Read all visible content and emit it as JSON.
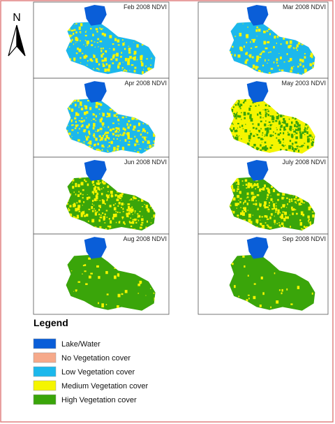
{
  "north": "N",
  "panels": [
    {
      "title": "Feb 2008 NDVI"
    },
    {
      "title": "Mar 2008 NDVI"
    },
    {
      "title": "Apr 2008 NDVI"
    },
    {
      "title": "May 2003 NDVI"
    },
    {
      "title": "Jun 2008 NDVI"
    },
    {
      "title": "July 2008 NDVI"
    },
    {
      "title": "Aug 2008 NDVI"
    },
    {
      "title": "Sep 2008 NDVI"
    }
  ],
  "legend": {
    "title": "Legend",
    "items": [
      {
        "label": "Lake/Water",
        "color": "#0a5ed8"
      },
      {
        "label": "No Vegetation cover",
        "color": "#f6a98a"
      },
      {
        "label": "Low Vegetation cover",
        "color": "#1cb8ec"
      },
      {
        "label": "Medium Vegetation cover",
        "color": "#f5f500"
      },
      {
        "label": "High Vegetation cover",
        "color": "#3aa50a"
      }
    ]
  }
}
